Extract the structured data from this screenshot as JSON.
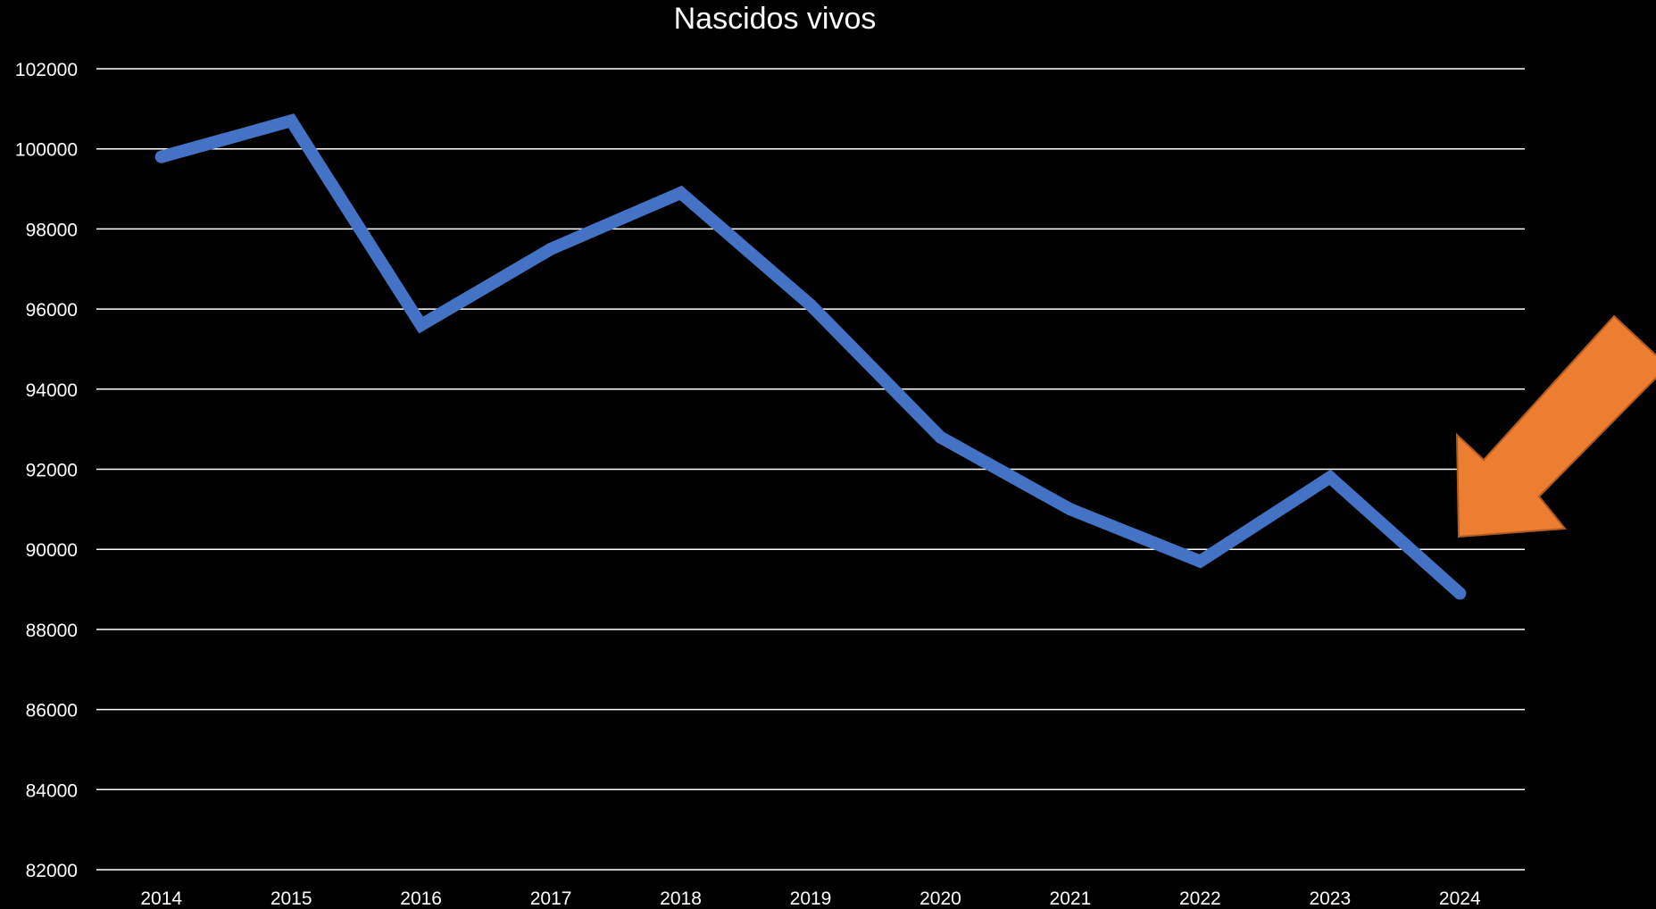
{
  "colors": {
    "background": "#000000",
    "text": "#ffffff",
    "gridline": "#ffffff",
    "series": "#4472c4",
    "arrow": "#ed7d31",
    "arrow_outline": "#ae5a21"
  },
  "annotation": {
    "icon": "arrow-down-left-icon",
    "points_to": "2024"
  },
  "chart_data": {
    "type": "line",
    "title": "Nascidos vivos",
    "xlabel": "",
    "ylabel": "",
    "categories": [
      "2014",
      "2015",
      "2016",
      "2017",
      "2018",
      "2019",
      "2020",
      "2021",
      "2022",
      "2023",
      "2024"
    ],
    "series": [
      {
        "values": [
          99800,
          100700,
          95600,
          97500,
          98900,
          96100,
          92800,
          91000,
          89700,
          91800,
          88900
        ]
      }
    ],
    "ylim": [
      82000,
      102000
    ],
    "yticks": [
      82000,
      84000,
      86000,
      88000,
      90000,
      92000,
      94000,
      96000,
      98000,
      100000,
      102000
    ],
    "grid": true,
    "legend": "none"
  }
}
